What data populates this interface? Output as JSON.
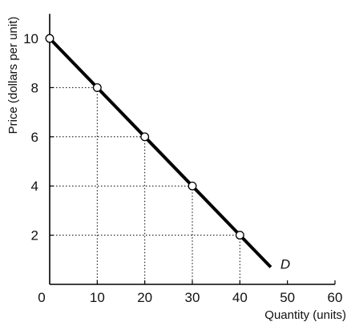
{
  "chart_data": {
    "type": "line",
    "xlabel": "Quantity (units)",
    "ylabel": "Price (dollars per unit)",
    "xlim": [
      0,
      60
    ],
    "ylim": [
      0,
      11
    ],
    "x_ticks": [
      "0",
      "10",
      "20",
      "30",
      "40",
      "50",
      "60"
    ],
    "y_ticks": [
      "2",
      "4",
      "6",
      "8",
      "10"
    ],
    "grid": false,
    "series": [
      {
        "name": "D",
        "x": [
          0,
          10,
          20,
          30,
          40,
          46.5
        ],
        "y": [
          10,
          8,
          6,
          4,
          2,
          0.7
        ]
      }
    ],
    "marked_points": [
      {
        "x": 0,
        "y": 10
      },
      {
        "x": 10,
        "y": 8
      },
      {
        "x": 20,
        "y": 6
      },
      {
        "x": 30,
        "y": 4
      },
      {
        "x": 40,
        "y": 2
      }
    ],
    "dotted_guides": true,
    "colors": {
      "line": "#000000",
      "guides": "#000000",
      "marker_fill": "#ffffff"
    }
  }
}
